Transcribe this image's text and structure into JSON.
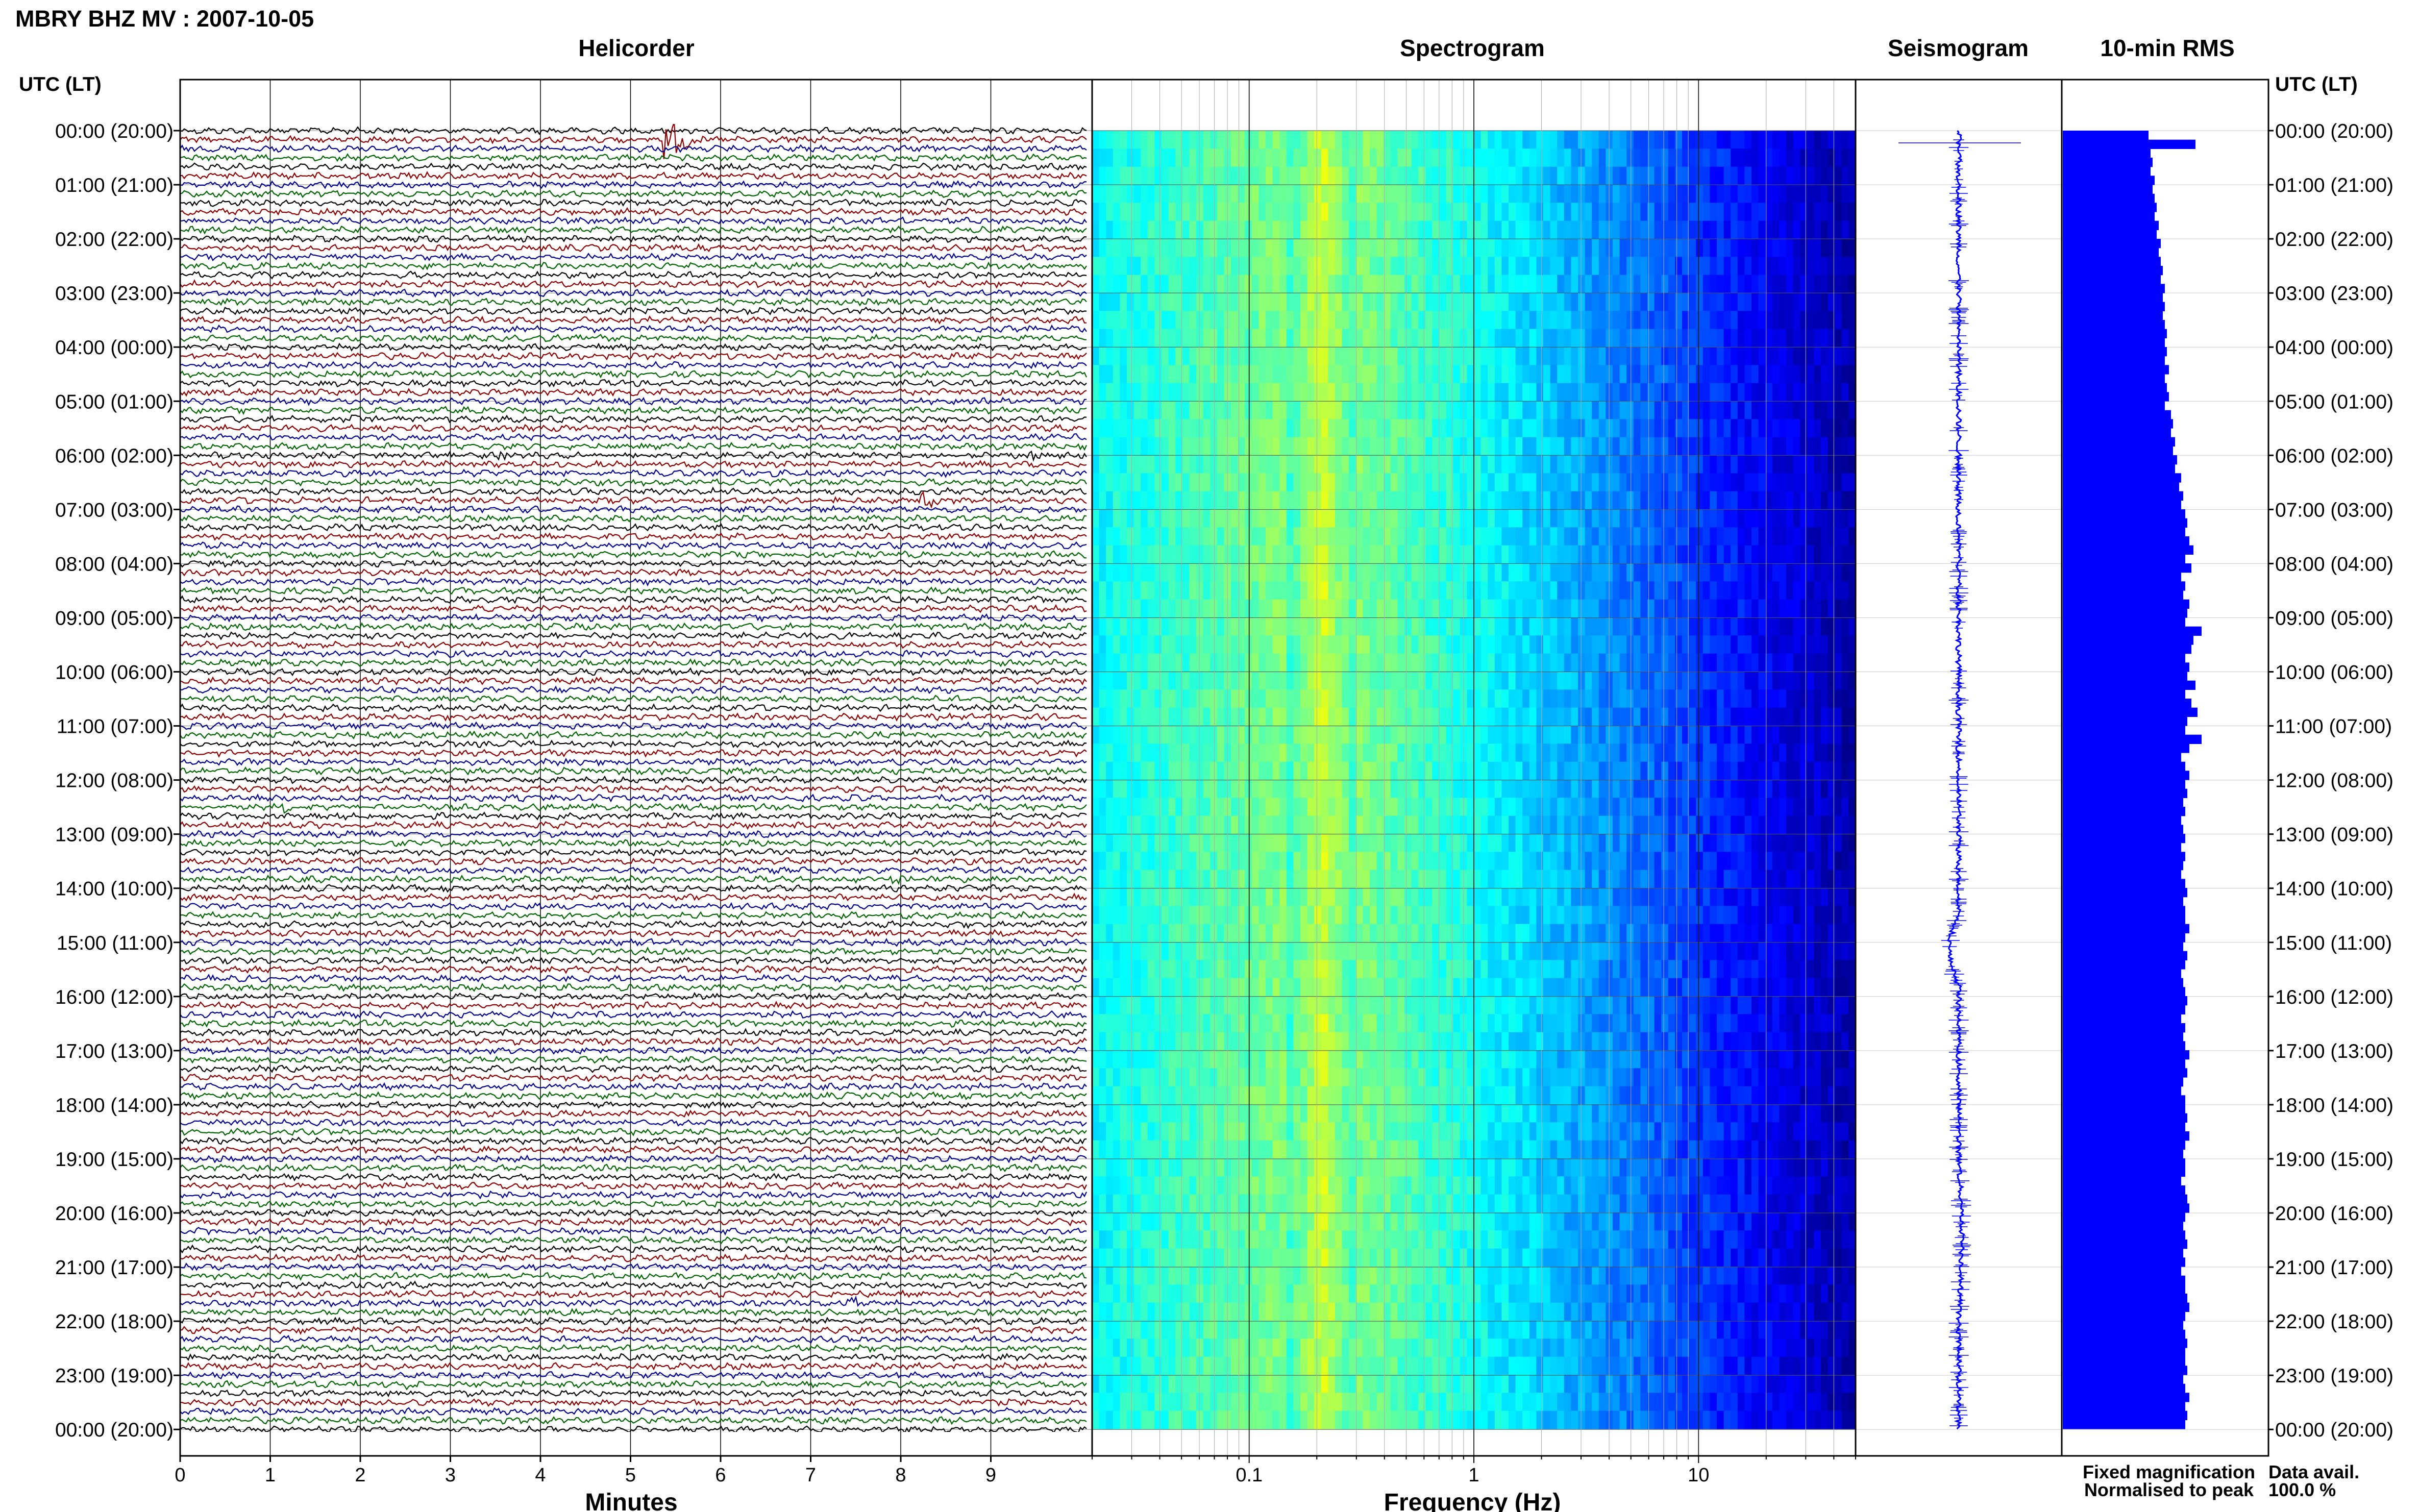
{
  "header": {
    "title": "MBRY BHZ MV : 2007-10-05",
    "time_axis_label": "UTC (LT)"
  },
  "chart_data": [
    {
      "type": "line",
      "title": "Helicorder",
      "xlabel": "Minutes",
      "x_ticks": [
        "0",
        "1",
        "2",
        "3",
        "4",
        "5",
        "6",
        "7",
        "8",
        "9"
      ],
      "xlim": [
        0,
        10
      ],
      "ylabel": "UTC (LT)",
      "y_ticks": [
        "00:00 (20:00)",
        "01:00 (21:00)",
        "02:00 (22:00)",
        "03:00 (23:00)",
        "04:00 (00:00)",
        "05:00 (01:00)",
        "06:00 (02:00)",
        "07:00 (03:00)",
        "08:00 (04:00)",
        "09:00 (05:00)",
        "10:00 (06:00)",
        "11:00 (07:00)",
        "12:00 (08:00)",
        "13:00 (09:00)",
        "14:00 (10:00)",
        "15:00 (11:00)",
        "16:00 (12:00)",
        "17:00 (13:00)",
        "18:00 (14:00)",
        "19:00 (15:00)",
        "20:00 (16:00)",
        "21:00 (17:00)",
        "22:00 (18:00)",
        "23:00 (19:00)",
        "00:00 (20:00)"
      ],
      "traces_per_hour": 6,
      "trace_colors": [
        "#000000",
        "#8b0000",
        "#00008b",
        "#006400"
      ],
      "events": [
        {
          "hour": 0.1,
          "minute": 5.45,
          "color": "#8b0000",
          "amplitude": "large"
        },
        {
          "hour": 5.3,
          "minute": 2.0,
          "color": "#000000",
          "amplitude": "small"
        },
        {
          "hour": 5.95,
          "minute": 9.5,
          "color": "#006400",
          "amplitude": "small"
        },
        {
          "hour": 6.0,
          "minute": 3.6,
          "color": "#000000",
          "amplitude": "small"
        },
        {
          "hour": 6.85,
          "minute": 8.3,
          "color": "#8b0000",
          "amplitude": "medium"
        },
        {
          "hour": 12.55,
          "minute": 1.2,
          "color": "#006400",
          "amplitude": "small"
        },
        {
          "hour": 13.8,
          "minute": 8.0,
          "color": "#006400",
          "amplitude": "small"
        },
        {
          "hour": 21.6,
          "minute": 7.5,
          "color": "#00008b",
          "amplitude": "medium"
        },
        {
          "hour": 23.15,
          "minute": 2.6,
          "color": "#006400",
          "amplitude": "small"
        }
      ]
    },
    {
      "type": "heatmap",
      "title": "Spectrogram",
      "xlabel": "Frequency (Hz)",
      "x_scale": "log",
      "x_ticks": [
        "0.1",
        "1",
        "10"
      ],
      "xlim": [
        0.02,
        50
      ],
      "peak_band_hz": [
        0.15,
        0.3
      ],
      "colormap": [
        "#00008b",
        "#0000ff",
        "#0080ff",
        "#00ffff",
        "#80ff80",
        "#ffff00"
      ]
    },
    {
      "type": "line",
      "title": "Seismogram",
      "color": "#0000ff"
    },
    {
      "type": "bar",
      "title": "10-min RMS",
      "color": "#0000ff",
      "values": [
        0.42,
        0.65,
        0.43,
        0.44,
        0.43,
        0.45,
        0.44,
        0.45,
        0.46,
        0.45,
        0.47,
        0.46,
        0.48,
        0.47,
        0.48,
        0.49,
        0.48,
        0.5,
        0.49,
        0.5,
        0.49,
        0.5,
        0.51,
        0.5,
        0.51,
        0.5,
        0.52,
        0.5,
        0.51,
        0.52,
        0.5,
        0.53,
        0.54,
        0.53,
        0.55,
        0.54,
        0.56,
        0.55,
        0.58,
        0.57,
        0.59,
        0.58,
        0.6,
        0.61,
        0.6,
        0.62,
        0.64,
        0.6,
        0.63,
        0.58,
        0.6,
        0.59,
        0.62,
        0.61,
        0.6,
        0.68,
        0.64,
        0.63,
        0.6,
        0.62,
        0.61,
        0.65,
        0.6,
        0.63,
        0.66,
        0.61,
        0.6,
        0.68,
        0.62,
        0.58,
        0.6,
        0.62,
        0.6,
        0.61,
        0.59,
        0.6,
        0.58,
        0.59,
        0.6,
        0.58,
        0.6,
        0.59,
        0.58,
        0.6,
        0.61,
        0.59,
        0.6,
        0.6,
        0.62,
        0.6,
        0.59,
        0.61,
        0.6,
        0.58,
        0.59,
        0.6,
        0.61,
        0.6,
        0.58,
        0.6,
        0.59,
        0.6,
        0.62,
        0.6,
        0.61,
        0.59,
        0.58,
        0.6,
        0.6,
        0.61,
        0.6,
        0.62,
        0.6,
        0.59,
        0.6,
        0.6,
        0.58,
        0.6,
        0.61,
        0.62,
        0.6,
        0.59,
        0.6,
        0.61,
        0.59,
        0.6,
        0.58,
        0.6,
        0.6,
        0.61,
        0.62,
        0.6,
        0.59,
        0.6,
        0.61,
        0.6,
        0.6,
        0.61,
        0.59,
        0.6,
        0.62,
        0.6,
        0.61,
        0.6
      ]
    }
  ],
  "footer": {
    "fixed_label": "Fixed magnification",
    "fixed_color": "#0000ff",
    "norm_label": "Normalised to peak",
    "norm_color": "#ff0000",
    "avail_label": "Data avail.",
    "avail_value": "100.0 %"
  }
}
